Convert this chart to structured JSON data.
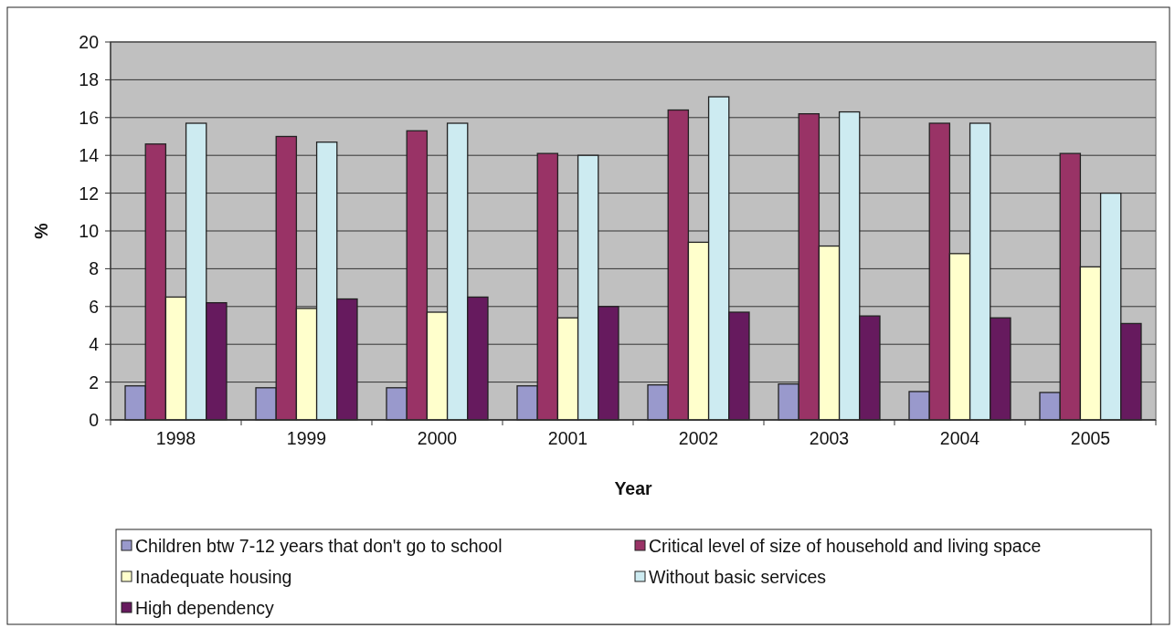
{
  "chart_data": {
    "type": "bar",
    "xlabel": "Year",
    "ylabel": "%",
    "categories": [
      "1998",
      "1999",
      "2000",
      "2001",
      "2002",
      "2003",
      "2004",
      "2005"
    ],
    "series": [
      {
        "name": "Children btw 7-12 years that don't go to school",
        "color": "#9999cc",
        "values": [
          1.8,
          1.7,
          1.7,
          1.8,
          1.85,
          1.9,
          1.5,
          1.45
        ]
      },
      {
        "name": "Critical level of size of household and living space",
        "color": "#993366",
        "values": [
          14.6,
          15.0,
          15.3,
          14.1,
          16.4,
          16.2,
          15.7,
          14.1
        ]
      },
      {
        "name": "Inadequate housing",
        "color": "#ffffcc",
        "values": [
          6.5,
          5.9,
          5.7,
          5.4,
          9.4,
          9.2,
          8.8,
          8.1
        ]
      },
      {
        "name": "Without basic services",
        "color": "#cdebf1",
        "values": [
          15.7,
          14.7,
          15.7,
          14.0,
          17.1,
          16.3,
          15.7,
          12.0
        ]
      },
      {
        "name": "High dependency",
        "color": "#661a5e",
        "values": [
          6.2,
          6.4,
          6.5,
          6.0,
          5.7,
          5.5,
          5.4,
          5.1
        ]
      }
    ],
    "ylim": [
      0,
      20
    ],
    "yticks": [
      0,
      2,
      4,
      6,
      8,
      10,
      12,
      14,
      16,
      18,
      20
    ],
    "grid": "y",
    "legend": "bottom"
  }
}
